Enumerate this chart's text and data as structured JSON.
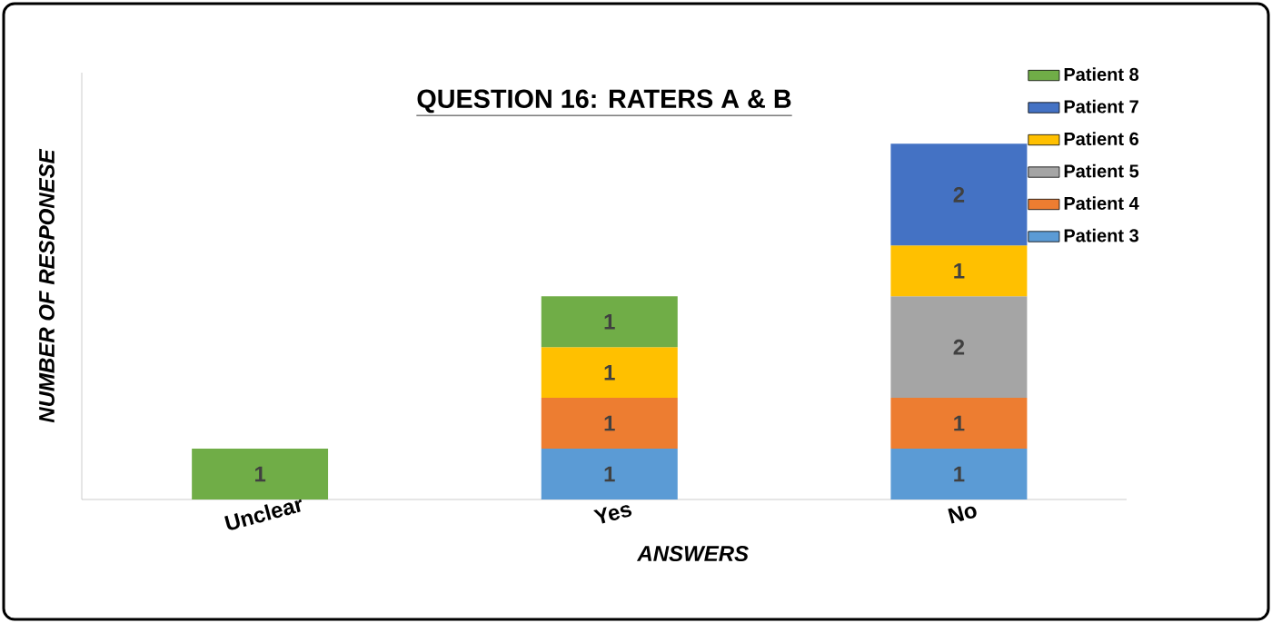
{
  "chart_data": {
    "type": "bar",
    "stacked": true,
    "title": "QUESTION 16: RATERS A & B",
    "xlabel": "ANSWERS",
    "ylabel": "NUMBER OF RESPONESE",
    "categories": [
      "Unclear",
      "Yes",
      "No"
    ],
    "series": [
      {
        "name": "Patient 3",
        "color": "#5b9bd5",
        "values": [
          null,
          1,
          1
        ]
      },
      {
        "name": "Patient 4",
        "color": "#ed7d31",
        "values": [
          null,
          1,
          1
        ]
      },
      {
        "name": "Patient 5",
        "color": "#a5a5a5",
        "values": [
          null,
          null,
          2
        ]
      },
      {
        "name": "Patient 6",
        "color": "#ffc000",
        "values": [
          null,
          1,
          1
        ]
      },
      {
        "name": "Patient 7",
        "color": "#4472c4",
        "values": [
          null,
          null,
          2
        ]
      },
      {
        "name": "Patient 8",
        "color": "#70ad47",
        "values": [
          1,
          1,
          null
        ]
      }
    ],
    "data_labels": true,
    "legend": "right"
  }
}
